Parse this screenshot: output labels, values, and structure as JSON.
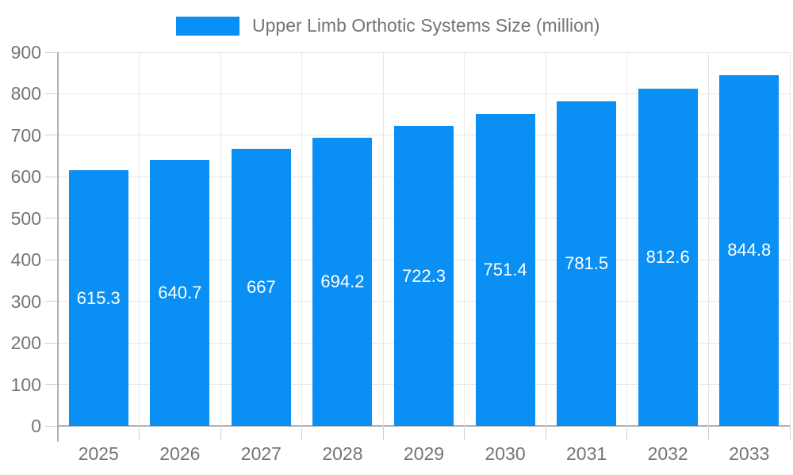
{
  "legend": {
    "label": "Upper Limb Orthotic Systems Size (million)"
  },
  "chart_data": {
    "type": "bar",
    "title": "Upper Limb Orthotic Systems Size (million)",
    "categories": [
      "2025",
      "2026",
      "2027",
      "2028",
      "2029",
      "2030",
      "2031",
      "2032",
      "2033"
    ],
    "values": [
      615.3,
      640.7,
      667,
      694.2,
      722.3,
      751.4,
      781.5,
      812.6,
      844.8
    ],
    "value_labels": [
      "615.3",
      "640.7",
      "667",
      "694.2",
      "722.3",
      "751.4",
      "781.5",
      "812.6",
      "844.8"
    ],
    "y_ticks": [
      0,
      100,
      200,
      300,
      400,
      500,
      600,
      700,
      800,
      900
    ],
    "y_tick_labels": [
      "0",
      "100",
      "200",
      "300",
      "400",
      "500",
      "600",
      "700",
      "800",
      "900"
    ],
    "ylim": [
      0,
      900
    ],
    "xlabel": "",
    "ylabel": "",
    "grid": true,
    "legend_position": "top-center",
    "colors": {
      "bar": "#0a8ff5",
      "value_label": "#ffffff",
      "axis_line": "#b0b0b0",
      "gridline": "#e6e6e6",
      "tick": "#cfcfcf",
      "text": "#757575"
    }
  }
}
